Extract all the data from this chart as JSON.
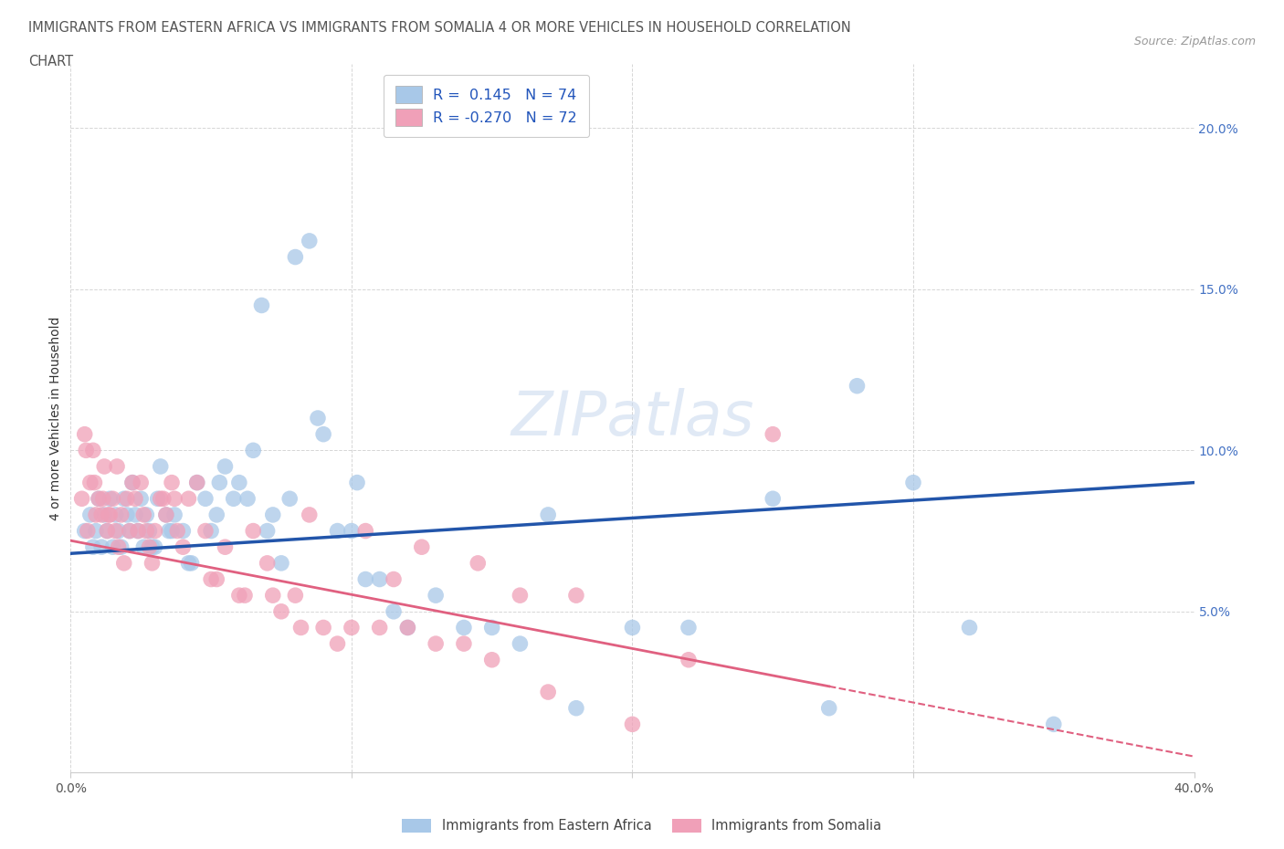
{
  "title_line1": "IMMIGRANTS FROM EASTERN AFRICA VS IMMIGRANTS FROM SOMALIA 4 OR MORE VEHICLES IN HOUSEHOLD CORRELATION",
  "title_line2": "CHART",
  "source_text": "Source: ZipAtlas.com",
  "ylabel": "4 or more Vehicles in Household",
  "xlim": [
    0.0,
    40.0
  ],
  "ylim": [
    0.0,
    22.0
  ],
  "yticks": [
    0.0,
    5.0,
    10.0,
    15.0,
    20.0
  ],
  "ytick_labels_right": [
    "",
    "5.0%",
    "10.0%",
    "15.0%",
    "20.0%"
  ],
  "xticks": [
    0.0,
    10.0,
    20.0,
    30.0,
    40.0
  ],
  "xtick_labels": [
    "0.0%",
    "",
    "",
    "",
    "40.0%"
  ],
  "blue_R": 0.145,
  "blue_N": 74,
  "pink_R": -0.27,
  "pink_N": 72,
  "blue_color": "#A8C8E8",
  "pink_color": "#F0A0B8",
  "blue_line_color": "#2255AA",
  "pink_line_color": "#E06080",
  "legend_label_blue": "Immigrants from Eastern Africa",
  "legend_label_pink": "Immigrants from Somalia",
  "watermark": "ZIPatlas",
  "blue_line_x0": 0.0,
  "blue_line_y0": 6.8,
  "blue_line_x1": 40.0,
  "blue_line_y1": 9.0,
  "pink_line_x0": 0.0,
  "pink_line_y0": 7.2,
  "pink_line_x1": 40.0,
  "pink_line_y1": 0.5,
  "blue_scatter_x": [
    0.5,
    0.7,
    0.8,
    0.9,
    1.0,
    1.1,
    1.2,
    1.3,
    1.4,
    1.5,
    1.6,
    1.7,
    1.8,
    1.9,
    2.0,
    2.1,
    2.2,
    2.3,
    2.4,
    2.5,
    2.6,
    2.7,
    2.8,
    3.0,
    3.1,
    3.2,
    3.4,
    3.5,
    3.7,
    4.0,
    4.2,
    4.5,
    4.8,
    5.0,
    5.2,
    5.5,
    5.8,
    6.0,
    6.3,
    6.5,
    6.8,
    7.0,
    7.2,
    7.5,
    8.0,
    8.5,
    9.0,
    9.5,
    10.0,
    10.5,
    11.0,
    11.5,
    12.0,
    13.0,
    14.0,
    15.0,
    16.0,
    17.0,
    18.0,
    20.0,
    22.0,
    25.0,
    28.0,
    30.0,
    32.0,
    35.0,
    2.9,
    3.6,
    4.3,
    5.3,
    7.8,
    8.8,
    10.2,
    27.0
  ],
  "blue_scatter_y": [
    7.5,
    8.0,
    7.0,
    7.5,
    8.5,
    7.0,
    8.0,
    7.5,
    8.5,
    7.0,
    8.0,
    7.5,
    7.0,
    8.5,
    8.0,
    7.5,
    9.0,
    8.0,
    7.5,
    8.5,
    7.0,
    8.0,
    7.5,
    7.0,
    8.5,
    9.5,
    8.0,
    7.5,
    8.0,
    7.5,
    6.5,
    9.0,
    8.5,
    7.5,
    8.0,
    9.5,
    8.5,
    9.0,
    8.5,
    10.0,
    14.5,
    7.5,
    8.0,
    6.5,
    16.0,
    16.5,
    10.5,
    7.5,
    7.5,
    6.0,
    6.0,
    5.0,
    4.5,
    5.5,
    4.5,
    4.5,
    4.0,
    8.0,
    2.0,
    4.5,
    4.5,
    8.5,
    12.0,
    9.0,
    4.5,
    1.5,
    7.0,
    7.5,
    6.5,
    9.0,
    8.5,
    11.0,
    9.0,
    2.0
  ],
  "pink_scatter_x": [
    0.4,
    0.5,
    0.6,
    0.7,
    0.8,
    0.9,
    1.0,
    1.1,
    1.2,
    1.3,
    1.4,
    1.5,
    1.6,
    1.7,
    1.8,
    1.9,
    2.0,
    2.1,
    2.2,
    2.3,
    2.4,
    2.5,
    2.6,
    2.7,
    2.8,
    3.0,
    3.2,
    3.4,
    3.6,
    3.8,
    4.0,
    4.2,
    4.5,
    4.8,
    5.0,
    5.5,
    6.0,
    6.5,
    7.0,
    7.5,
    8.0,
    8.5,
    9.0,
    10.0,
    11.0,
    12.0,
    13.0,
    14.0,
    15.0,
    17.0,
    20.0,
    25.0,
    1.15,
    2.9,
    3.3,
    3.7,
    5.2,
    6.2,
    7.2,
    8.2,
    9.5,
    10.5,
    11.5,
    12.5,
    14.5,
    16.0,
    18.0,
    22.0,
    0.55,
    0.85,
    1.35,
    1.65
  ],
  "pink_scatter_y": [
    8.5,
    10.5,
    7.5,
    9.0,
    10.0,
    8.0,
    8.5,
    8.0,
    9.5,
    7.5,
    8.0,
    8.5,
    7.5,
    7.0,
    8.0,
    6.5,
    8.5,
    7.5,
    9.0,
    8.5,
    7.5,
    9.0,
    8.0,
    7.5,
    7.0,
    7.5,
    8.5,
    8.0,
    9.0,
    7.5,
    7.0,
    8.5,
    9.0,
    7.5,
    6.0,
    7.0,
    5.5,
    7.5,
    6.5,
    5.0,
    5.5,
    8.0,
    4.5,
    4.5,
    4.5,
    4.5,
    4.0,
    4.0,
    3.5,
    2.5,
    1.5,
    10.5,
    8.5,
    6.5,
    8.5,
    8.5,
    6.0,
    5.5,
    5.5,
    4.5,
    4.0,
    7.5,
    6.0,
    7.0,
    6.5,
    5.5,
    5.5,
    3.5,
    10.0,
    9.0,
    8.0,
    9.5
  ]
}
